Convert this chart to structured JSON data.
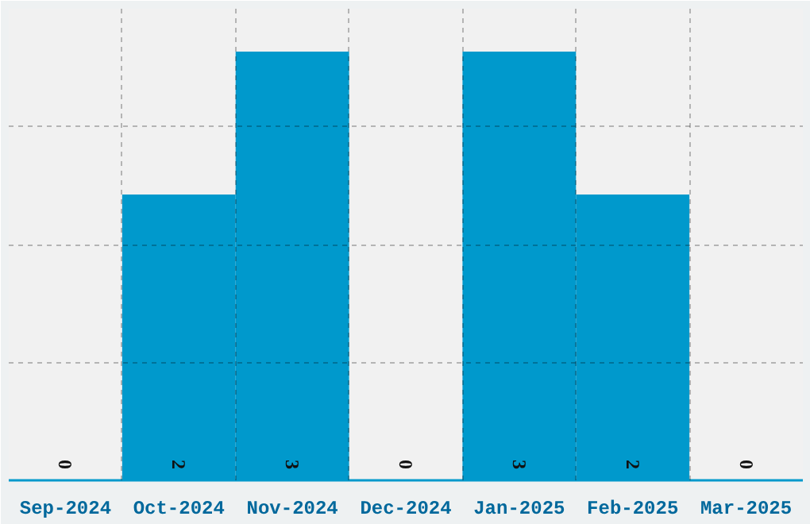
{
  "chart_data": {
    "type": "bar",
    "categories": [
      "Sep-2024",
      "Oct-2024",
      "Nov-2024",
      "Dec-2024",
      "Jan-2025",
      "Feb-2025",
      "Mar-2025"
    ],
    "values": [
      0,
      2,
      3,
      0,
      3,
      2,
      0
    ],
    "color": "#0099cc",
    "ylim": [
      0,
      3.3
    ],
    "yticks": [
      {
        "value": 0.825,
        "label": null
      },
      {
        "value": 1.65,
        "label": null
      },
      {
        "value": 2.475,
        "label": null
      },
      {
        "value": 3.3,
        "label": null
      }
    ],
    "grid": true,
    "data_labels": true,
    "tick_labels": "x"
  }
}
